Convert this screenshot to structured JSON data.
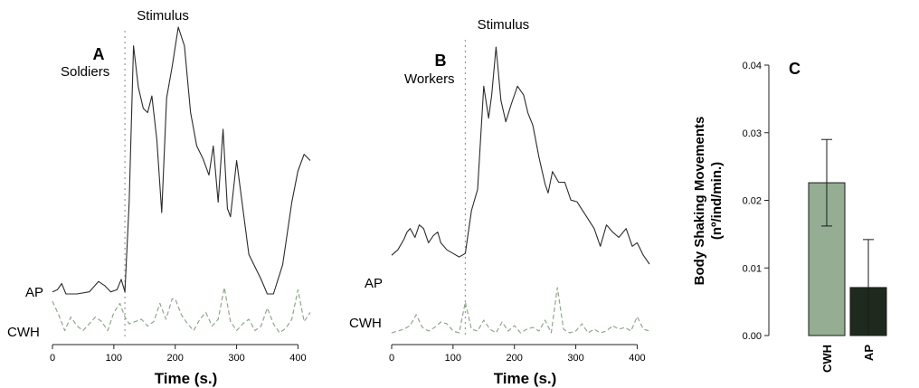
{
  "colors": {
    "ap_line": "#2b2b2b",
    "cwh_line": "#8fa88c",
    "stimulus_line": "#9a9a9a",
    "bar_cwh": "#94ad93",
    "bar_ap": "#1f2a1f",
    "axis": "#222222"
  },
  "chart_data": [
    {
      "type": "line",
      "panel": "A",
      "group_label": "Soldiers",
      "stimulus_label": "Stimulus",
      "stimulus_x": 118,
      "xlabel": "Time (s.)",
      "xlim": [
        0,
        420
      ],
      "xticks": [
        0,
        100,
        200,
        300,
        400
      ],
      "y_scale": "unitless (no y axis shown)",
      "series": [
        {
          "name": "AP",
          "style": "solid",
          "x": [
            0,
            8,
            15,
            22,
            40,
            60,
            75,
            85,
            95,
            105,
            112,
            118,
            125,
            132,
            140,
            148,
            155,
            162,
            170,
            178,
            186,
            195,
            205,
            215,
            225,
            235,
            245,
            255,
            262,
            270,
            278,
            285,
            290,
            300,
            320,
            340,
            350,
            360,
            375,
            390,
            400,
            410,
            420
          ],
          "y": [
            2,
            3,
            6,
            1,
            1,
            2,
            7,
            5,
            2,
            3,
            8,
            2,
            45,
            120,
            100,
            90,
            88,
            96,
            75,
            40,
            95,
            110,
            129,
            120,
            88,
            72,
            66,
            58,
            72,
            45,
            80,
            42,
            38,
            65,
            20,
            8,
            1,
            1,
            15,
            45,
            60,
            68,
            65
          ]
        },
        {
          "name": "CWH",
          "style": "dashed",
          "x": [
            0,
            10,
            20,
            30,
            40,
            50,
            60,
            70,
            80,
            90,
            100,
            110,
            118,
            125,
            135,
            145,
            155,
            165,
            175,
            185,
            195,
            200,
            210,
            220,
            230,
            240,
            250,
            260,
            270,
            280,
            290,
            300,
            310,
            320,
            330,
            340,
            350,
            360,
            370,
            380,
            390,
            400,
            410,
            420
          ],
          "y": [
            1.4,
            0.8,
            0.1,
            0.7,
            0.3,
            0.1,
            0.4,
            0.7,
            0.5,
            0.1,
            0.9,
            1.3,
            0.7,
            0.4,
            0.5,
            0.6,
            0.3,
            0.5,
            1.3,
            0.6,
            1.5,
            1.5,
            0.8,
            0.4,
            0.1,
            0.6,
            0.9,
            0.3,
            0.6,
            2.0,
            0.5,
            0.1,
            0.4,
            0.6,
            0.1,
            0.3,
            1.1,
            0.4,
            0.0,
            0.2,
            0.6,
            1.9,
            0.5,
            0.9
          ]
        }
      ]
    },
    {
      "type": "line",
      "panel": "B",
      "group_label": "Workers",
      "stimulus_label": "Stimulus",
      "stimulus_x": 120,
      "xlabel": "Time (s.)",
      "xlim": [
        0,
        420
      ],
      "xticks": [
        0,
        100,
        200,
        300,
        400
      ],
      "y_scale": "unitless (no y axis shown)",
      "series": [
        {
          "name": "AP",
          "style": "solid",
          "x": [
            0,
            10,
            20,
            25,
            30,
            38,
            45,
            52,
            60,
            68,
            75,
            80,
            90,
            100,
            110,
            120,
            130,
            140,
            150,
            158,
            163,
            170,
            178,
            186,
            195,
            205,
            215,
            222,
            230,
            240,
            250,
            255,
            262,
            272,
            282,
            292,
            302,
            315,
            330,
            340,
            350,
            360,
            370,
            382,
            392,
            400,
            410,
            420
          ],
          "y": [
            5,
            8,
            14,
            18,
            20,
            15,
            22,
            20,
            12,
            16,
            18,
            12,
            8,
            6,
            4,
            6,
            30,
            42,
            100,
            82,
            95,
            122,
            92,
            80,
            90,
            100,
            95,
            85,
            78,
            60,
            45,
            40,
            52,
            46,
            46,
            36,
            35,
            28,
            20,
            10,
            22,
            18,
            15,
            20,
            10,
            12,
            5,
            0
          ]
        },
        {
          "name": "CWH",
          "style": "dashed",
          "x": [
            0,
            10,
            20,
            30,
            40,
            50,
            60,
            70,
            80,
            90,
            100,
            110,
            120,
            130,
            140,
            150,
            160,
            170,
            180,
            190,
            200,
            210,
            220,
            230,
            240,
            250,
            260,
            270,
            280,
            290,
            300,
            310,
            320,
            330,
            340,
            350,
            360,
            370,
            380,
            390,
            400,
            410,
            420
          ],
          "y": [
            0.1,
            0.2,
            0.3,
            0.5,
            1.1,
            0.4,
            0.2,
            0.4,
            0.7,
            0.6,
            0.2,
            0.1,
            1.8,
            0.3,
            0.2,
            0.8,
            0.3,
            0.1,
            0.7,
            0.2,
            0.5,
            0.1,
            0.3,
            0.4,
            0.2,
            0.8,
            0.1,
            2.6,
            0.3,
            0.1,
            0.2,
            0.6,
            0.1,
            0.3,
            0.1,
            0.2,
            0.5,
            0.3,
            0.4,
            0.2,
            1.0,
            0.3,
            0.2
          ]
        }
      ]
    },
    {
      "type": "bar",
      "panel": "C",
      "categories": [
        "CWH",
        "AP"
      ],
      "values": [
        0.0226,
        0.0071
      ],
      "error": [
        0.0064,
        0.0071
      ],
      "ylabel_line1": "Body Shaking Movements",
      "ylabel_line2": "(nº/ind/min.)",
      "ylim": [
        0,
        0.04
      ],
      "yticks": [
        "0.00",
        "0.01",
        "0.02",
        "0.03",
        "0.04"
      ]
    }
  ]
}
